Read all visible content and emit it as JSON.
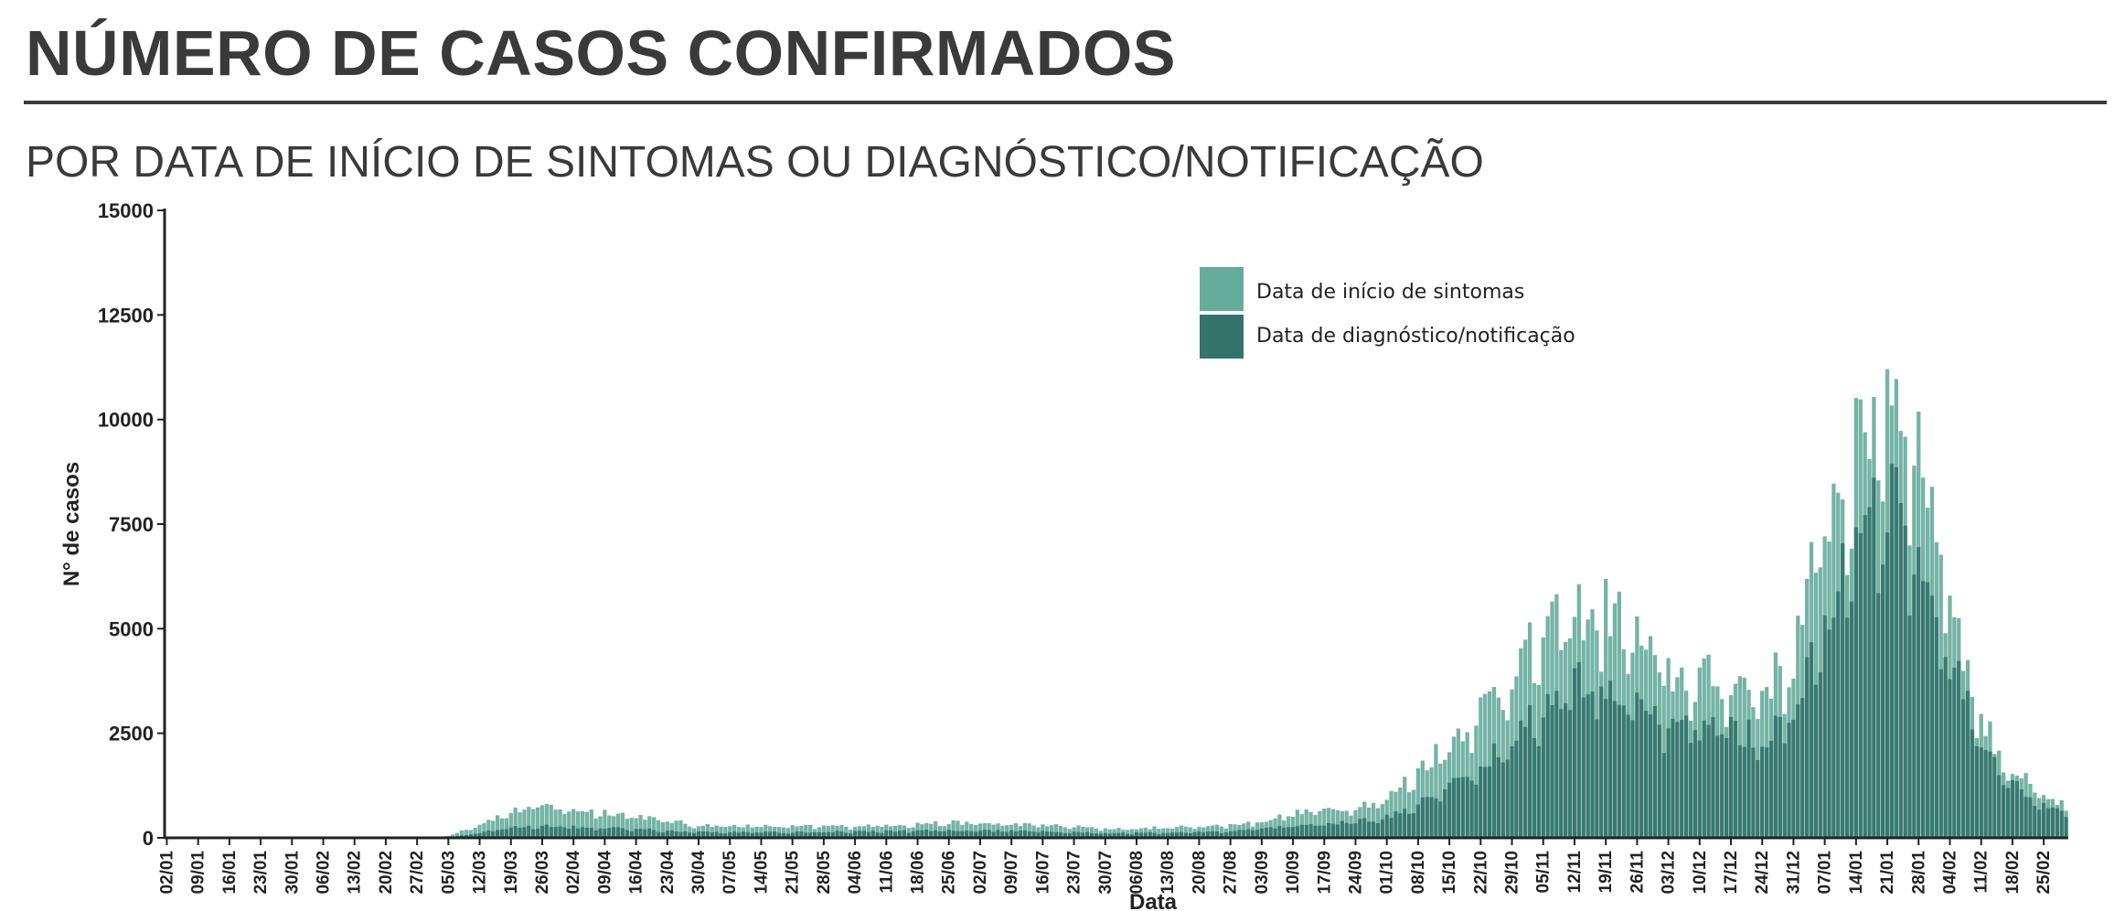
{
  "header": {
    "title": "NÚMERO DE CASOS CONFIRMADOS",
    "subtitle": "POR DATA DE INÍCIO DE SINTOMAS OU DIAGNÓSTICO/NOTIFICAÇÃO"
  },
  "colors": {
    "symptoms": "#65ac9b",
    "diagnosis": "#33736a",
    "axis": "#222222"
  },
  "chart_data": {
    "type": "bar",
    "xlabel": "Data",
    "ylabel": "N° de casos",
    "ylim": [
      0,
      15000
    ],
    "yticks": [
      0,
      2500,
      5000,
      7500,
      10000,
      12500,
      15000
    ],
    "start_date": "2020-01-02",
    "end_date": "2021-03-02",
    "xtick_labels": [
      "02/01",
      "09/01",
      "16/01",
      "23/01",
      "30/01",
      "06/02",
      "13/02",
      "20/02",
      "27/02",
      "05/03",
      "12/03",
      "19/03",
      "26/03",
      "02/04",
      "09/04",
      "16/04",
      "23/04",
      "30/04",
      "07/05",
      "14/05",
      "21/05",
      "28/05",
      "04/06",
      "11/06",
      "18/06",
      "25/06",
      "02/07",
      "09/07",
      "16/07",
      "23/07",
      "30/07",
      "06/08",
      "13/08",
      "20/08",
      "27/08",
      "03/09",
      "10/09",
      "17/09",
      "24/09",
      "01/10",
      "08/10",
      "15/10",
      "22/10",
      "29/10",
      "05/11",
      "12/11",
      "19/11",
      "26/11",
      "03/12",
      "10/12",
      "17/12",
      "24/12",
      "31/12",
      "07/01",
      "14/01",
      "21/01",
      "28/01",
      "04/02",
      "11/02",
      "18/02",
      "25/02"
    ],
    "legend": {
      "position": "top-center",
      "entries": [
        "Data de início de sintomas",
        "Data de diagnóstico/notificação"
      ]
    },
    "grid": false,
    "series": [
      {
        "name": "Data de início de sintomas",
        "interpolated_from_weekly_knots": true,
        "knots_dates": [
          "02/01",
          "09/01",
          "16/01",
          "23/01",
          "30/01",
          "06/02",
          "13/02",
          "20/02",
          "27/02",
          "05/03",
          "12/03",
          "19/03",
          "26/03",
          "02/04",
          "09/04",
          "16/04",
          "23/04",
          "30/04",
          "07/05",
          "14/05",
          "21/05",
          "28/05",
          "04/06",
          "11/06",
          "18/06",
          "25/06",
          "02/07",
          "09/07",
          "16/07",
          "23/07",
          "30/07",
          "06/08",
          "13/08",
          "20/08",
          "27/08",
          "03/09",
          "10/09",
          "17/09",
          "24/09",
          "01/10",
          "08/10",
          "15/10",
          "22/10",
          "29/10",
          "05/11",
          "12/11",
          "19/11",
          "26/11",
          "03/12",
          "10/12",
          "17/12",
          "24/12",
          "31/12",
          "07/01",
          "14/01",
          "21/01",
          "28/01",
          "04/02",
          "11/02",
          "18/02",
          "25/02",
          "02/03"
        ],
        "knots_values": [
          0,
          0,
          0,
          0,
          0,
          0,
          0,
          0,
          0,
          50,
          350,
          650,
          800,
          700,
          650,
          550,
          420,
          320,
          300,
          290,
          280,
          290,
          300,
          320,
          350,
          380,
          360,
          340,
          320,
          280,
          230,
          230,
          260,
          290,
          320,
          420,
          600,
          700,
          800,
          950,
          1700,
          2400,
          3200,
          4200,
          5000,
          5600,
          5700,
          5000,
          4000,
          4000,
          3900,
          3700,
          4500,
          8000,
          9500,
          11500,
          10000,
          6200,
          2900,
          1700,
          1000,
          700
        ]
      },
      {
        "name": "Data de diagnóstico/notificação",
        "interpolated_from_weekly_knots": true,
        "knots_dates": [
          "02/01",
          "09/01",
          "16/01",
          "23/01",
          "30/01",
          "06/02",
          "13/02",
          "20/02",
          "27/02",
          "05/03",
          "12/03",
          "19/03",
          "26/03",
          "02/04",
          "09/04",
          "16/04",
          "23/04",
          "30/04",
          "07/05",
          "14/05",
          "21/05",
          "28/05",
          "04/06",
          "11/06",
          "18/06",
          "25/06",
          "02/07",
          "09/07",
          "16/07",
          "23/07",
          "30/07",
          "06/08",
          "13/08",
          "20/08",
          "27/08",
          "03/09",
          "10/09",
          "17/09",
          "24/09",
          "01/10",
          "08/10",
          "15/10",
          "22/10",
          "29/10",
          "05/11",
          "12/11",
          "19/11",
          "26/11",
          "03/12",
          "10/12",
          "17/12",
          "24/12",
          "31/12",
          "07/01",
          "14/01",
          "21/01",
          "28/01",
          "04/02",
          "11/02",
          "18/02",
          "25/02",
          "02/03"
        ],
        "knots_values": [
          0,
          0,
          0,
          0,
          0,
          0,
          0,
          0,
          0,
          10,
          120,
          250,
          300,
          270,
          250,
          220,
          180,
          150,
          140,
          140,
          140,
          150,
          160,
          170,
          180,
          190,
          180,
          170,
          160,
          140,
          120,
          120,
          130,
          150,
          170,
          220,
          300,
          350,
          400,
          500,
          900,
          1300,
          1800,
          2500,
          3300,
          3900,
          4000,
          3400,
          2800,
          2800,
          2700,
          2500,
          3200,
          5800,
          7000,
          8400,
          7000,
          4500,
          2200,
          1300,
          800,
          550
        ]
      }
    ]
  }
}
